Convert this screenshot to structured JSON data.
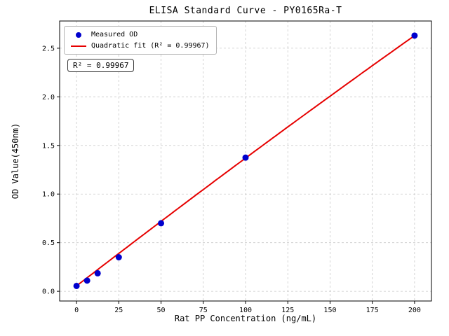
{
  "chart_data": {
    "type": "scatter",
    "title": "ELISA Standard Curve - PY0165Ra-T",
    "xlabel": "Rat PP Concentration (ng/mL)",
    "ylabel": "OD Value(450nm)",
    "xlim": [
      -10,
      210
    ],
    "ylim": [
      -0.1,
      2.78
    ],
    "xticks": [
      0,
      25,
      50,
      75,
      100,
      125,
      150,
      175,
      200
    ],
    "yticks": [
      0.0,
      0.5,
      1.0,
      1.5,
      2.0,
      2.5
    ],
    "grid": true,
    "grid_style": "dashed",
    "legend_position": "upper-left",
    "annotation": "R² = 0.99967",
    "series": [
      {
        "name": "Measured OD",
        "type": "scatter",
        "color": "#0000cd",
        "x": [
          0,
          6.25,
          12.5,
          25,
          50,
          100,
          200
        ],
        "y": [
          0.055,
          0.11,
          0.185,
          0.35,
          0.7,
          1.375,
          2.63
        ]
      },
      {
        "name": "Quadratic fit (R² = 0.99967)",
        "type": "line",
        "color": "#e60000",
        "fit": {
          "kind": "quadratic",
          "coefficients": {
            "a": -2.75e-06,
            "b": 0.013425,
            "c": 0.055
          },
          "x_range": [
            0,
            200
          ],
          "r_squared": 0.99967
        }
      }
    ]
  }
}
